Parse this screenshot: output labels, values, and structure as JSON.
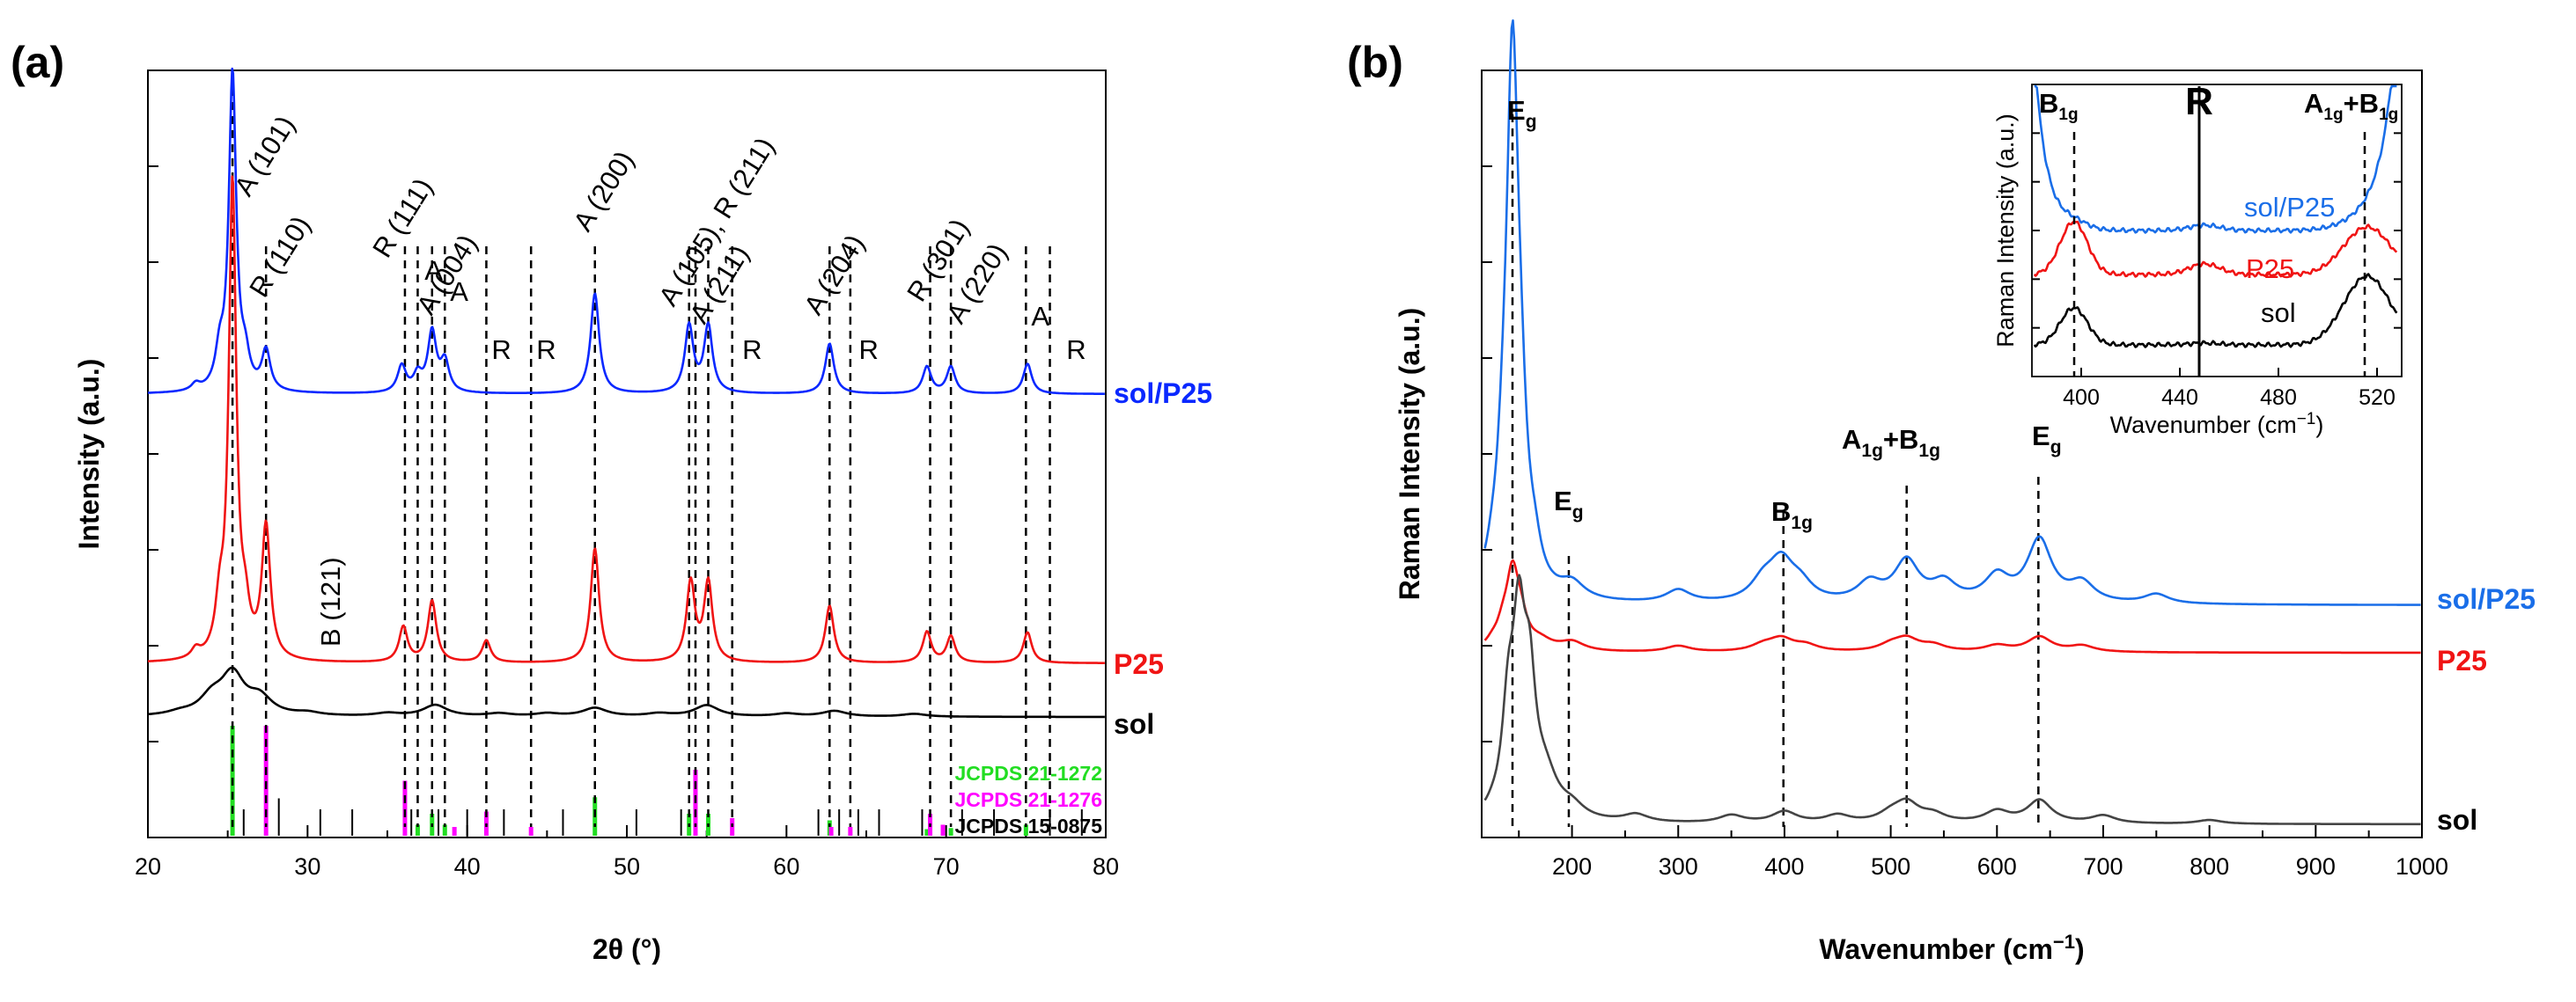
{
  "chart_data": [
    {
      "panel": "(a)",
      "type": "line",
      "xlabel": "2θ (°)",
      "ylabel": "Intensity (a.u.)",
      "xlim": [
        20,
        80
      ],
      "xticks": [
        "20",
        "30",
        "40",
        "50",
        "60",
        "70",
        "80"
      ],
      "series": [
        {
          "name": "sol/P25",
          "color": "#0a28ff",
          "offset": 60,
          "x": [
            20,
            23,
            24.5,
            25.3,
            26.1,
            27.4,
            35.9,
            36.9,
            37.8,
            38.6,
            48.0,
            53.9,
            55.1,
            62.7,
            68.8,
            70.3,
            75.1,
            80
          ],
          "values": [
            0,
            2,
            10,
            95,
            8,
            12,
            8,
            5,
            18,
            9,
            30,
            20,
            20,
            15,
            8,
            8,
            9,
            0
          ]
        },
        {
          "name": "P25",
          "color": "#f01414",
          "offset": 25,
          "x": [
            20,
            23,
            24.5,
            25.3,
            26.1,
            27.4,
            36.0,
            37.8,
            41.2,
            48.0,
            54.0,
            55.1,
            62.7,
            68.8,
            70.3,
            75.1,
            80
          ],
          "values": [
            0,
            2,
            10,
            108,
            8,
            30,
            8,
            14,
            5,
            26,
            18,
            18,
            13,
            7,
            6,
            7,
            0
          ]
        },
        {
          "name": "sol",
          "color": "#000000",
          "offset": 12,
          "x": [
            20,
            22,
            24,
            25.3,
            27,
            30,
            35,
            38,
            42,
            45,
            48,
            52,
            55,
            60,
            63,
            68,
            75,
            80
          ],
          "values": [
            0,
            1,
            6,
            14,
            6,
            1,
            1,
            4,
            1,
            1,
            3,
            1,
            4,
            1,
            2,
            1,
            0,
            0
          ]
        }
      ],
      "reference_patterns": [
        {
          "name": "JCPDS 21-1272",
          "color": "#22dd22",
          "positions": [
            25.3,
            36.9,
            37.8,
            38.6,
            48.0,
            53.9,
            55.1,
            62.7,
            68.8,
            70.3,
            75.0
          ],
          "intensities": [
            100,
            10,
            20,
            10,
            35,
            20,
            20,
            14,
            6,
            7,
            10
          ]
        },
        {
          "name": "JCPDS 21-1276",
          "color": "#ff00ff",
          "positions": [
            27.4,
            36.1,
            39.2,
            41.2,
            44.0,
            54.3,
            56.6,
            62.8,
            64.0,
            69.0,
            69.8
          ],
          "intensities": [
            100,
            50,
            8,
            22,
            8,
            60,
            16,
            8,
            8,
            20,
            10
          ]
        },
        {
          "name": "JCPDS 15-0875",
          "color": "#000000",
          "positions": [
            26.0,
            28.2,
            30.8,
            32.8,
            36.5,
            38.2,
            40.0,
            42.3,
            46.0,
            50.6,
            53.4,
            62.0,
            63.3,
            64.5,
            65.8,
            68.5,
            71.0,
            73.0,
            76.5,
            78.5
          ],
          "intensities": [
            24,
            34,
            24,
            24,
            24,
            24,
            24,
            24,
            24,
            24,
            24,
            24,
            24,
            24,
            24,
            24,
            24,
            24,
            24,
            24
          ]
        }
      ],
      "annotations": [
        {
          "text": "A (101)",
          "x": 25.3,
          "y": 370,
          "angle": -58
        },
        {
          "text": "R (110)",
          "x": 27.4,
          "y": 315,
          "angle": -58
        },
        {
          "text": "R (111)",
          "x": 35.5,
          "y": 330,
          "angle": -58
        },
        {
          "text": "A",
          "x": 37.0,
          "y": 265,
          "angle": 0
        },
        {
          "text": "A (004)",
          "x": 37.6,
          "y": 290,
          "angle": -58
        },
        {
          "text": "A",
          "x": 38.6,
          "y": 240,
          "angle": 0
        },
        {
          "text": "R",
          "x": 41.2,
          "y": 235,
          "angle": 0
        },
        {
          "text": "R",
          "x": 44.0,
          "y": 230,
          "angle": 0
        },
        {
          "text": "A (200)",
          "x": 48.0,
          "y": 330,
          "angle": -58
        },
        {
          "text": "A (105), R (211)",
          "x": 53.9,
          "y": 280,
          "angle": -58
        },
        {
          "text": "A (211)",
          "x": 55.4,
          "y": 250,
          "angle": -58
        },
        {
          "text": "R",
          "x": 56.9,
          "y": 230,
          "angle": 0
        },
        {
          "text": "A (204)",
          "x": 62.5,
          "y": 250,
          "angle": -58
        },
        {
          "text": "R",
          "x": 64.2,
          "y": 235,
          "angle": 0
        },
        {
          "text": "R (301)",
          "x": 68.8,
          "y": 250,
          "angle": -58
        },
        {
          "text": "A (220)",
          "x": 70.5,
          "y": 240,
          "angle": -58
        },
        {
          "text": "A",
          "x": 75.0,
          "y": 245,
          "angle": 0
        },
        {
          "text": "R",
          "x": 77.2,
          "y": 230,
          "angle": 0
        },
        {
          "text": "B (121)",
          "x": 31.0,
          "y": 100,
          "angle": -90
        }
      ],
      "anatase_lines": [
        25.3,
        36.9,
        37.8,
        38.6,
        48.0,
        53.9,
        55.1,
        62.7,
        70.3,
        75.0
      ],
      "rutile_lines": [
        27.4,
        36.1,
        41.2,
        44.0,
        54.3,
        56.6,
        64.0,
        69.0,
        76.5
      ]
    },
    {
      "panel": "(b)",
      "type": "line",
      "xlabel": "Wavenumber (cm",
      "xlabel_sup": "−1",
      "xlabel_end": ")",
      "ylabel": "Raman Intensity (a.u.)",
      "xlim": [
        115,
        1000
      ],
      "xticks": [
        "200",
        "300",
        "400",
        "500",
        "600",
        "700",
        "800",
        "900",
        "1000"
      ],
      "series": [
        {
          "name": "sol/P25",
          "color": "#0a28ff",
          "offset": 35,
          "x": [
            115,
            125,
            135,
            144,
            152,
            165,
            200,
            300,
            380,
            397,
            415,
            480,
            515,
            550,
            600,
            640,
            680,
            750,
            1000
          ],
          "values": [
            3,
            5,
            20,
            165,
            30,
            8,
            5,
            4,
            6,
            12,
            5,
            6,
            13,
            6,
            8,
            20,
            6,
            3,
            0
          ]
        },
        {
          "name": "P25",
          "color": "#f01414",
          "offset": 25,
          "x": [
            115,
            125,
            135,
            144,
            152,
            170,
            200,
            300,
            380,
            397,
            420,
            500,
            515,
            540,
            600,
            640,
            680,
            1000
          ],
          "values": [
            1,
            2,
            6,
            24,
            8,
            3,
            3,
            2,
            2,
            4,
            2,
            2,
            4,
            2,
            2,
            5,
            2,
            0
          ]
        },
        {
          "name": "sol",
          "color": "#000000",
          "offset": 3,
          "x": [
            115,
            125,
            140,
            150,
            160,
            175,
            200,
            260,
            350,
            400,
            450,
            500,
            515,
            540,
            600,
            640,
            700,
            800,
            1000
          ],
          "values": [
            0,
            1,
            25,
            45,
            30,
            10,
            3,
            2,
            2,
            3,
            2,
            2,
            5,
            2,
            3,
            6,
            2,
            1,
            0
          ]
        }
      ],
      "peak_labels": [
        {
          "main": "E",
          "sub": "g",
          "x": 144
        },
        {
          "main": "E",
          "sub": "g",
          "x": 197
        },
        {
          "main": "B",
          "sub": "1g",
          "x": 399
        },
        {
          "main": "A",
          "sub": "1g",
          "extra": "+B",
          "extra_sub": "1g",
          "x": 515
        },
        {
          "main": "E",
          "sub": "g",
          "x": 639
        }
      ],
      "inset": {
        "xlabel": "Wavenumber (cm",
        "xlabel_sup": "−1",
        "xlabel_end": ")",
        "ylabel": "Raman Intensity (a.u.)",
        "xlim": [
          380,
          530
        ],
        "xticks": [
          "400",
          "440",
          "480",
          "520"
        ],
        "marker": "R",
        "labels": [
          {
            "main": "B",
            "sub": "1g"
          },
          {
            "main": "A",
            "sub": "1g",
            "extra": "+B",
            "extra_sub": "1g"
          }
        ],
        "series_labels": [
          "sol/P25",
          "P25",
          "sol"
        ]
      }
    }
  ],
  "labels": {
    "panel_a": "(a)",
    "panel_b": "(b)",
    "a_sol_p25": "sol/P25",
    "a_p25": "P25",
    "a_sol": "sol",
    "b_sol_p25": "sol/P25",
    "b_p25": "P25",
    "b_sol": "sol"
  },
  "colors": {
    "blue": "#0a28ff",
    "red": "#f01414",
    "black": "#000000",
    "green": "#22dd22",
    "magenta": "#ff00ff",
    "ramanBlue": "#1a6ee8"
  }
}
